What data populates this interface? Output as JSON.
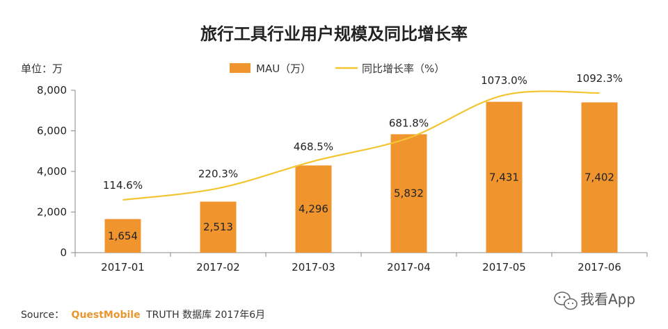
{
  "chart_data": {
    "type": "bar",
    "title": "旅行工具行业用户规模及同比增长率",
    "unit_label": "单位：万",
    "categories": [
      "2017-01",
      "2017-02",
      "2017-03",
      "2017-04",
      "2017-05",
      "2017-06"
    ],
    "series": [
      {
        "name": "MAU（万）",
        "type": "bar",
        "color": "#f0952e",
        "values": [
          1654,
          2513,
          4296,
          5832,
          7431,
          7402
        ],
        "labels": [
          "1,654",
          "2,513",
          "4,296",
          "5,832",
          "7,431",
          "7,402"
        ]
      },
      {
        "name": "同比增长率（%）",
        "type": "line",
        "color": "#f2c531",
        "values": [
          114.6,
          220.3,
          468.5,
          681.8,
          1073.0,
          1092.3
        ],
        "labels": [
          "114.6%",
          "220.3%",
          "468.5%",
          "681.8%",
          "1073.0%",
          "1092.3%"
        ]
      }
    ],
    "ylim": [
      0,
      8000
    ],
    "yticks": [
      0,
      2000,
      4000,
      6000,
      8000
    ],
    "ytick_labels": [
      "0",
      "2,000",
      "4,000",
      "6,000",
      "8,000"
    ],
    "legend_position": "top",
    "grid": false
  },
  "footer": {
    "source_prefix": "Source：",
    "source_brand": "QuestMobile",
    "source_rest": "TRUTH 数据库 2017年6月"
  },
  "watermark": {
    "icon": "wechat-icon",
    "text": "我看App"
  }
}
